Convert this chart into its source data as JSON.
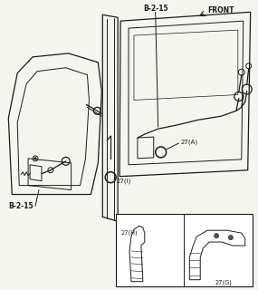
{
  "bg_color": "#f5f5f0",
  "line_color": "#1a1a1a",
  "label_color": "#1a1a1a",
  "fig_width": 2.85,
  "fig_height": 3.2,
  "dpi": 100,
  "labels": {
    "B215_top": "B-2-15",
    "B215_bot": "B-2-15",
    "FRONT": "FRONT",
    "27A": "27(A)",
    "27I": "27(I)",
    "27H": "27(H)",
    "27G": "27(G)"
  }
}
